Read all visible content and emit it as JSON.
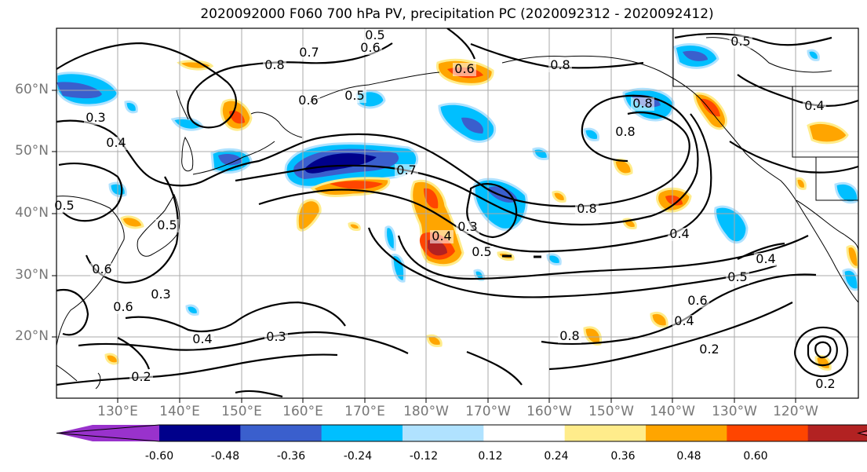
{
  "title": "2020092000 F060 700 hPa PV, precipitation PC (2020092312 - 2020092412)",
  "lat_labels": [
    "60°N",
    "50°N",
    "40°N",
    "30°N",
    "20°N"
  ],
  "lon_labels": [
    "130°E",
    "140°E",
    "150°E",
    "160°E",
    "170°E",
    "180°W",
    "170°W",
    "160°W",
    "150°W",
    "140°W",
    "130°W",
    "120°W"
  ],
  "colorbar": {
    "colors": [
      "#9932cc",
      "#00008b",
      "#3a5fcd",
      "#00bfff",
      "#b0e2ff",
      "#ffffff",
      "#ffec8b",
      "#ffa500",
      "#ff4500",
      "#b22222",
      "#ff82ab"
    ],
    "tick_labels": [
      "-0.60",
      "-0.48",
      "-0.36",
      "-0.24",
      "-0.12",
      "0.12",
      "0.24",
      "0.36",
      "0.48",
      "0.60"
    ]
  },
  "contour_labels": [
    {
      "text": "0.5"
    },
    {
      "text": "0.7"
    },
    {
      "text": "0.6"
    },
    {
      "text": "0.8"
    },
    {
      "text": "0.8"
    },
    {
      "text": "0.6"
    },
    {
      "text": "0.6"
    },
    {
      "text": "0.5"
    },
    {
      "text": "0.3"
    },
    {
      "text": "0.4"
    },
    {
      "text": "0.8"
    },
    {
      "text": "0.8"
    },
    {
      "text": "0.7"
    },
    {
      "text": "0.8"
    },
    {
      "text": "0.3"
    },
    {
      "text": "0.4"
    },
    {
      "text": "0.5"
    },
    {
      "text": "0.4"
    },
    {
      "text": "0.5"
    },
    {
      "text": "0.5"
    },
    {
      "text": "0.6"
    },
    {
      "text": "0.6"
    },
    {
      "text": "0.3"
    },
    {
      "text": "0.4"
    },
    {
      "text": "0.3"
    },
    {
      "text": "0.2"
    },
    {
      "text": "0.4"
    },
    {
      "text": "0.6"
    },
    {
      "text": "0.5"
    },
    {
      "text": "0.4"
    },
    {
      "text": "0.8"
    },
    {
      "text": "0.2"
    },
    {
      "text": "0.2"
    },
    {
      "text": "0.4"
    },
    {
      "text": "0.5"
    }
  ]
}
